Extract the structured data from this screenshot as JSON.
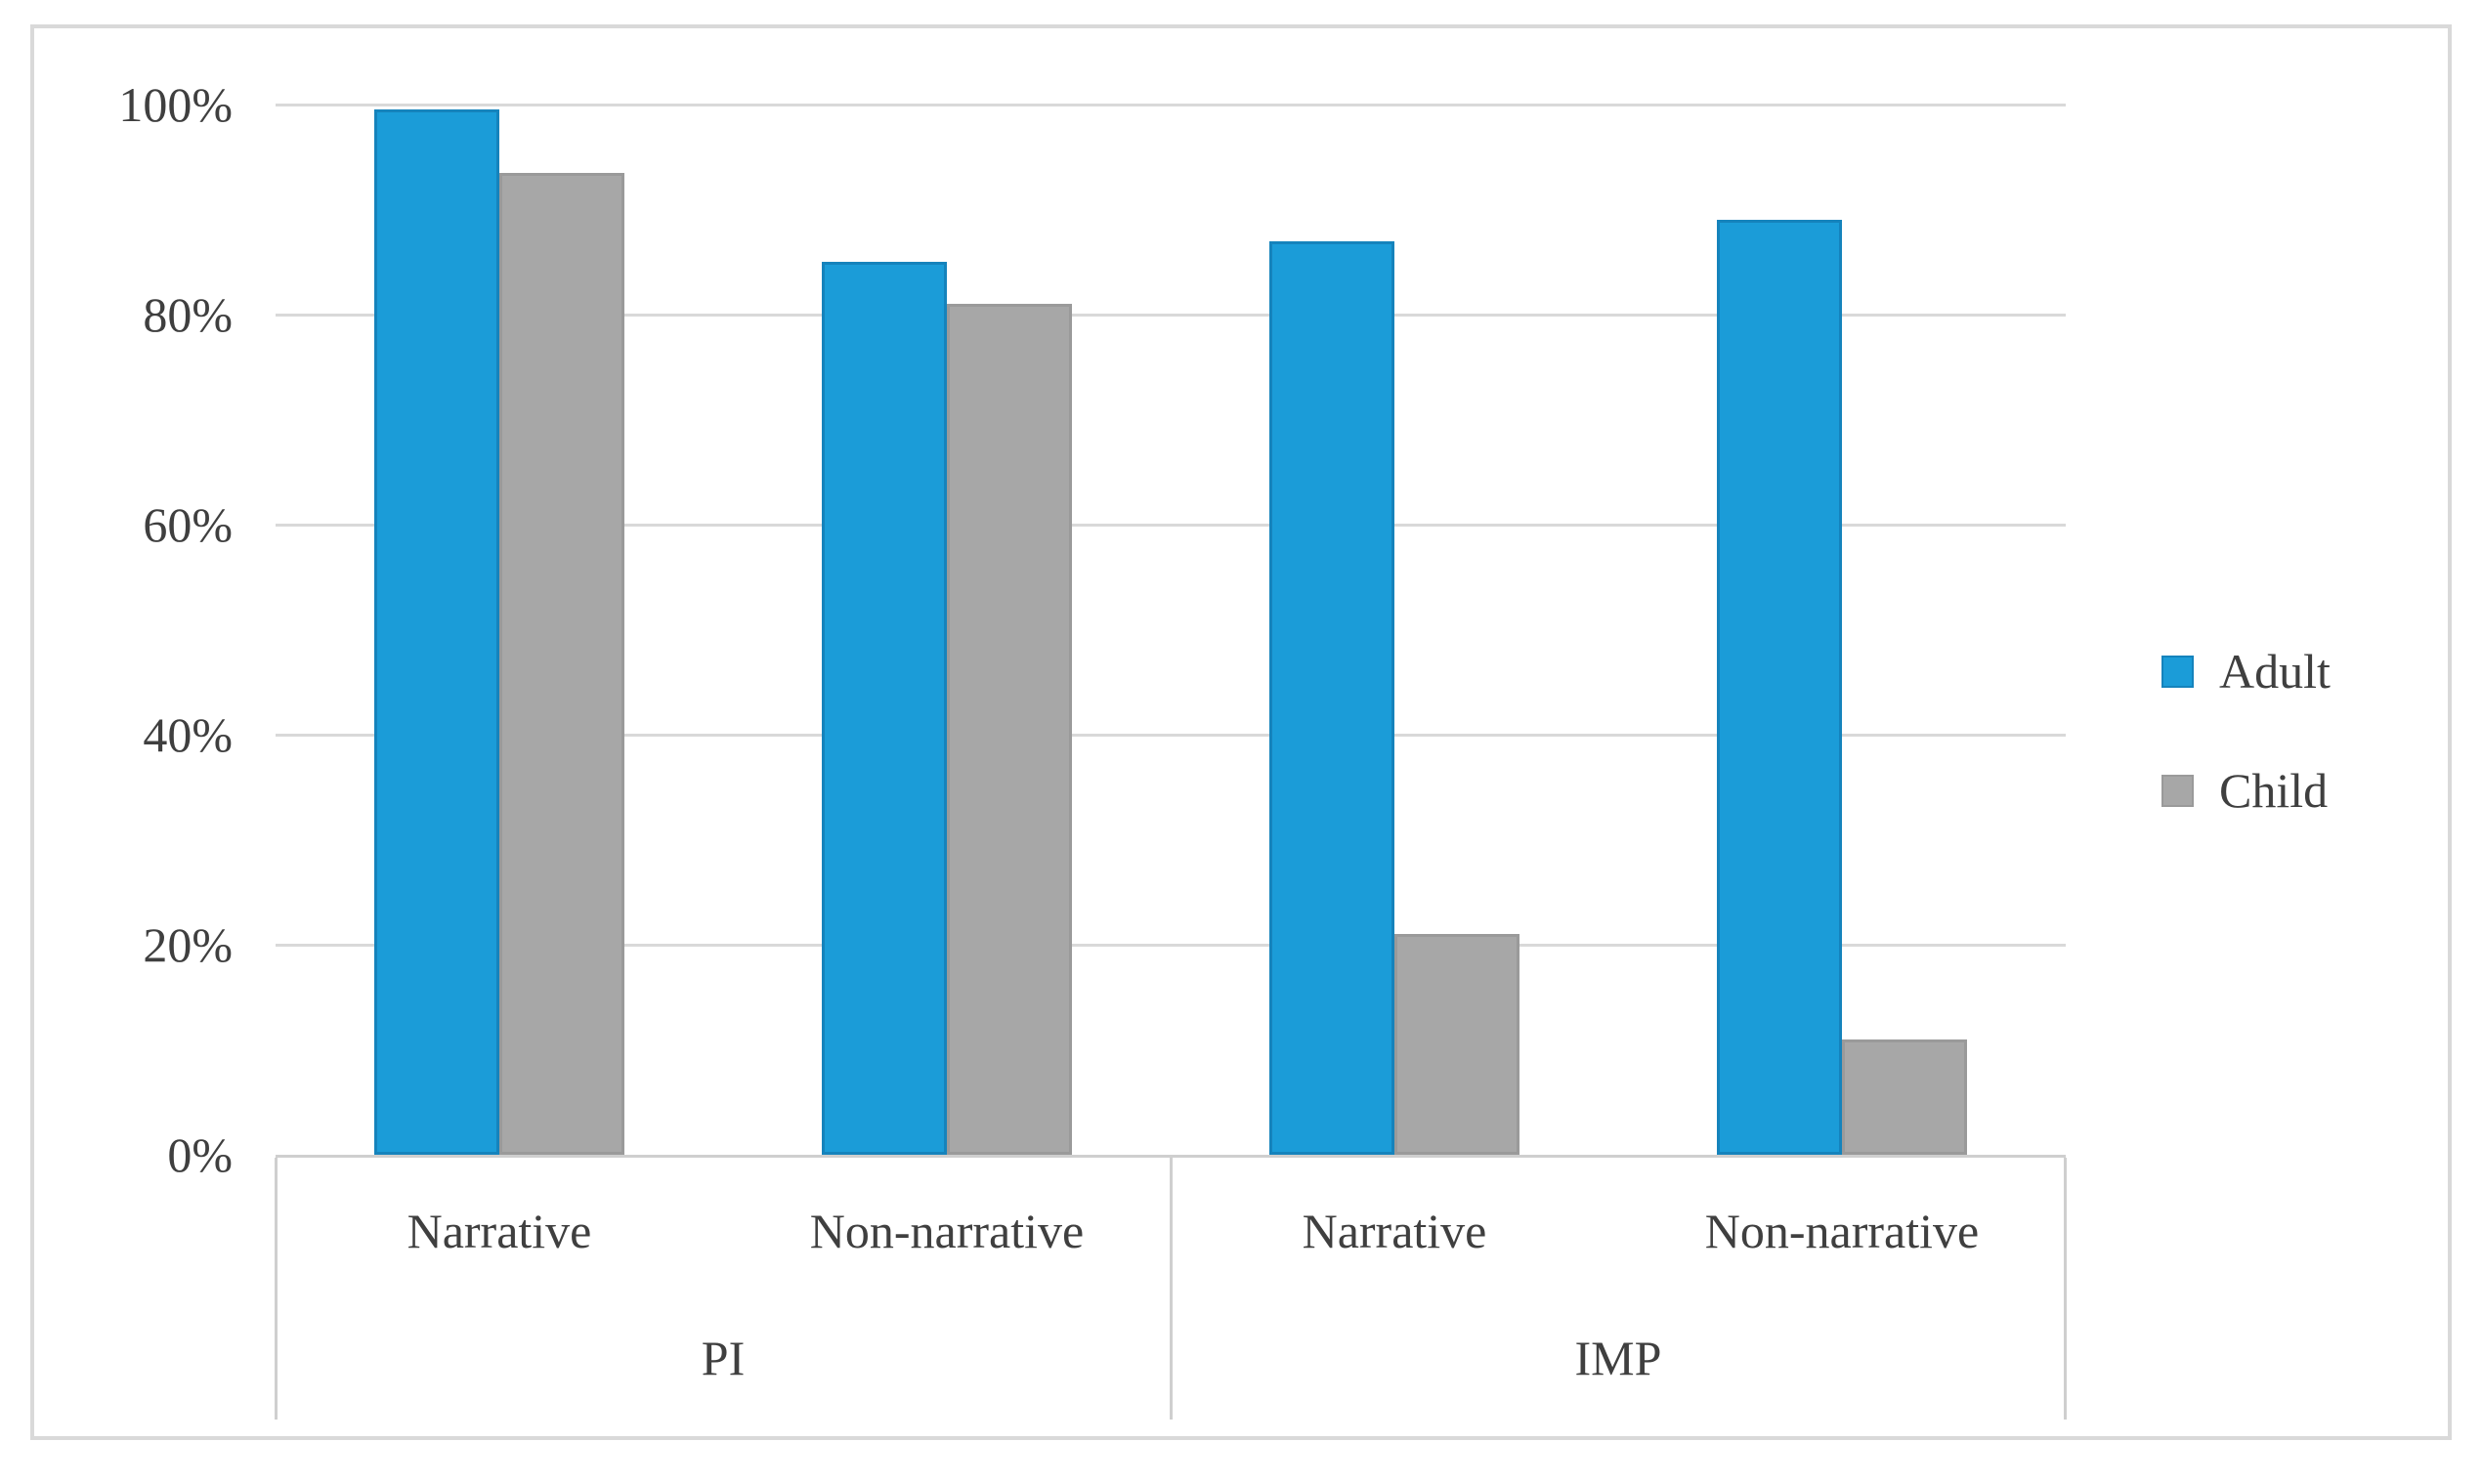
{
  "chart_data": {
    "type": "bar",
    "title": "",
    "xlabel": "",
    "ylabel": "",
    "categories": [
      "Narrative",
      "Non-narrative",
      "Narrative",
      "Non-narrative"
    ],
    "group_labels": [
      "PI",
      "IMP"
    ],
    "series": [
      {
        "name": "Adult",
        "color": "#1B9CD8",
        "border_color": "#1583BC",
        "values": [
          99.5,
          85,
          87,
          89
        ]
      },
      {
        "name": "Child",
        "color": "#A7A7A7",
        "border_color": "#9A9A9A",
        "values": [
          93.5,
          81,
          21,
          11
        ]
      }
    ],
    "y_ticks": [
      "100%",
      "80%",
      "60%",
      "40%",
      "20%",
      "0%"
    ],
    "ylim": [
      0,
      100
    ],
    "y_tick_step": 20,
    "grid": true,
    "legend_position": "right",
    "colors": {
      "gridline": "#D9D9D9",
      "axis_line": "#CFCFCF",
      "frame_border": "#D9D9D9",
      "text": "#3F3F3F",
      "background": "#FFFFFF"
    }
  }
}
